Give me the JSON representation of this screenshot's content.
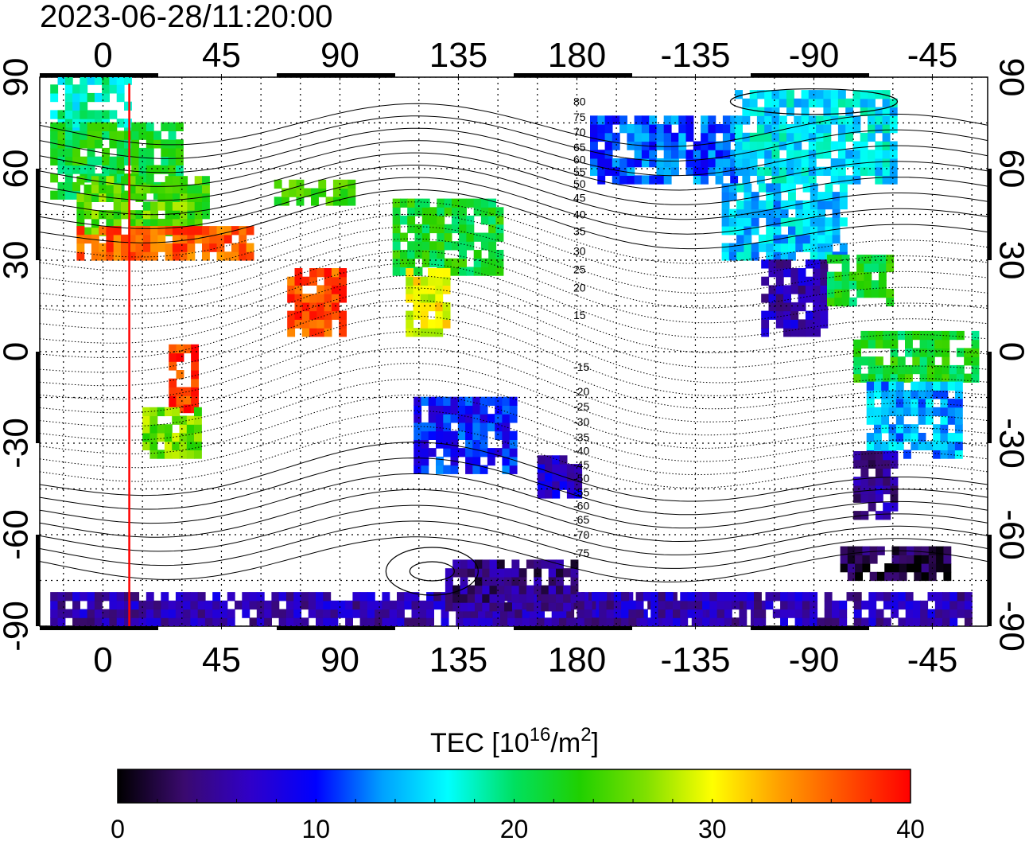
{
  "timestamp": "2023-06-28/11:20:00",
  "map": {
    "lon_ticks_top": [
      "0",
      "45",
      "90",
      "135",
      "180",
      "-135",
      "-90",
      "-45"
    ],
    "lon_ticks_bottom": [
      "0",
      "45",
      "90",
      "135",
      "180",
      "-135",
      "-90",
      "-45"
    ],
    "lat_ticks_left": [
      "90",
      "60",
      "30",
      "0",
      "-30",
      "-60",
      "-90"
    ],
    "lat_ticks_right": [
      "90",
      "60",
      "30",
      "0",
      "-30",
      "-60",
      "-90"
    ],
    "lon_range": [
      -24,
      336
    ],
    "lat_range": [
      -90,
      90
    ],
    "center_tick_lons": [
      0,
      45,
      90,
      135,
      180,
      225,
      270,
      315
    ],
    "center_tick_lats": [
      90,
      60,
      30,
      0,
      -30,
      -60,
      -90
    ],
    "terminator_longitude": 10,
    "terminator_color": "#ff0000",
    "contour_labels": [
      "80",
      "75",
      "70",
      "65",
      "60",
      "55",
      "50",
      "45",
      "40",
      "35",
      "30",
      "25",
      "20",
      "15",
      "-15",
      "-20",
      "-25",
      "-30",
      "-35",
      "-40",
      "-45",
      "-50",
      "-55",
      "-60",
      "-65",
      "-70",
      "-75"
    ],
    "regions": [
      {
        "lon": [
          -20,
          10
        ],
        "lat": [
          68,
          88
        ],
        "tec": 18
      },
      {
        "lon": [
          -20,
          30
        ],
        "lat": [
          50,
          75
        ],
        "tec": 22
      },
      {
        "lon": [
          -10,
          40
        ],
        "lat": [
          38,
          55
        ],
        "tec": 25
      },
      {
        "lon": [
          -10,
          55
        ],
        "lat": [
          30,
          40
        ],
        "tec": 36
      },
      {
        "lon": [
          25,
          35
        ],
        "lat": [
          -20,
          0
        ],
        "tec": 38
      },
      {
        "lon": [
          15,
          35
        ],
        "lat": [
          -35,
          -20
        ],
        "tec": 26
      },
      {
        "lon": [
          70,
          90
        ],
        "lat": [
          5,
          25
        ],
        "tec": 37
      },
      {
        "lon": [
          65,
          95
        ],
        "lat": [
          48,
          55
        ],
        "tec": 24
      },
      {
        "lon": [
          110,
          150
        ],
        "lat": [
          25,
          50
        ],
        "tec": 22
      },
      {
        "lon": [
          115,
          130
        ],
        "lat": [
          5,
          25
        ],
        "tec": 30
      },
      {
        "lon": [
          118,
          155
        ],
        "lat": [
          -40,
          -15
        ],
        "tec": 10
      },
      {
        "lon": [
          165,
          180
        ],
        "lat": [
          -48,
          -35
        ],
        "tec": 7
      },
      {
        "lon": [
          185,
          240
        ],
        "lat": [
          55,
          75
        ],
        "tec": 12
      },
      {
        "lon": [
          240,
          300
        ],
        "lat": [
          55,
          85
        ],
        "tec": 16
      },
      {
        "lon": [
          235,
          280
        ],
        "lat": [
          30,
          55
        ],
        "tec": 15
      },
      {
        "lon": [
          250,
          275
        ],
        "lat": [
          5,
          30
        ],
        "tec": 6
      },
      {
        "lon": [
          275,
          300
        ],
        "lat": [
          15,
          30
        ],
        "tec": 22
      },
      {
        "lon": [
          285,
          330
        ],
        "lat": [
          -10,
          5
        ],
        "tec": 22
      },
      {
        "lon": [
          290,
          325
        ],
        "lat": [
          -35,
          -10
        ],
        "tec": 14
      },
      {
        "lon": [
          285,
          300
        ],
        "lat": [
          -55,
          -35
        ],
        "tec": 5
      },
      {
        "lon": [
          280,
          320
        ],
        "lat": [
          -75,
          -65
        ],
        "tec": 2
      },
      {
        "lon": [
          -20,
          330
        ],
        "lat": [
          -90,
          -80
        ],
        "tec": 6
      },
      {
        "lon": [
          130,
          180
        ],
        "lat": [
          -85,
          -70
        ],
        "tec": 4
      },
      {
        "lon": [
          180,
          250
        ],
        "lat": [
          -90,
          -80
        ],
        "tec": 6
      }
    ]
  },
  "colorbar": {
    "title_main": "TEC  [10",
    "title_sup1": "16",
    "title_mid": "/m",
    "title_sup2": "2",
    "title_end": "]",
    "tick_labels": [
      "0",
      "10",
      "20",
      "30",
      "40"
    ],
    "tick_values": [
      0,
      10,
      20,
      30,
      40
    ],
    "range": [
      0,
      40
    ],
    "stops": [
      "#000000",
      "#3a0a6e",
      "#3000c8",
      "#0000ff",
      "#00a0ff",
      "#00ffff",
      "#00e060",
      "#20d000",
      "#80e000",
      "#ffff00",
      "#ffa000",
      "#ff5000",
      "#ff0000"
    ]
  }
}
